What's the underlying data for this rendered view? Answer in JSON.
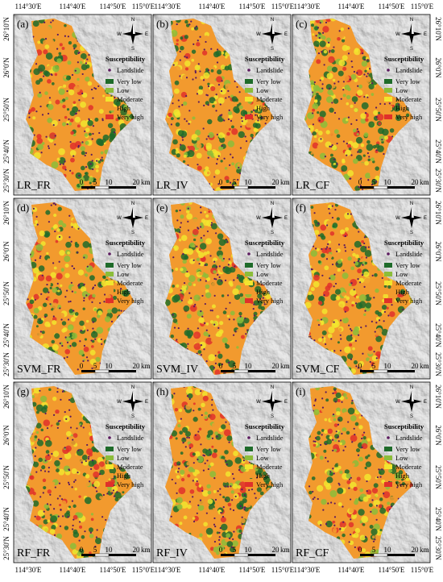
{
  "figure": {
    "top_labels": [
      "114°30'E",
      "114°40'E",
      "114°50'E",
      "115°0'E"
    ],
    "bottom_labels": [
      "114°30'E",
      "114°40'E",
      "114°50'E",
      "115°0'E"
    ],
    "left_labels": [
      "26°10'N",
      "26°0'N",
      "25°50'N",
      "25°40'N",
      "25°30'N"
    ],
    "right_labels": [
      "26°10'N",
      "26°0'N",
      "25°50'N",
      "25°40'N",
      "25°30'N"
    ],
    "panels": [
      {
        "letter": "(a)",
        "name": "LR_FR"
      },
      {
        "letter": "(b)",
        "name": "LR_IV"
      },
      {
        "letter": "(c)",
        "name": "LR_CF"
      },
      {
        "letter": "(d)",
        "name": "SVM_FR"
      },
      {
        "letter": "(e)",
        "name": "SVM_IV"
      },
      {
        "letter": "(f)",
        "name": "SVM_CF"
      },
      {
        "letter": "(g)",
        "name": "RF_FR"
      },
      {
        "letter": "(h)",
        "name": "RF_IV"
      },
      {
        "letter": "(i)",
        "name": "RF_CF"
      }
    ],
    "legend": {
      "title": "Susceptibility",
      "landslide": {
        "label": "Landslide",
        "color": "#5b1a5e"
      },
      "classes": [
        {
          "label": "Very low",
          "color": "#1f6b2a"
        },
        {
          "label": "Low",
          "color": "#8cbd3a"
        },
        {
          "label": "Moderate",
          "color": "#f2e52e"
        },
        {
          "label": "High",
          "color": "#f29a2e"
        },
        {
          "label": "Very high",
          "color": "#e0302a"
        }
      ]
    },
    "scale": {
      "ticks": [
        "0",
        "5",
        "10",
        "20"
      ],
      "unit": "km"
    },
    "compass": {
      "north": "N",
      "south": "S",
      "west": "W",
      "east": "E"
    }
  }
}
